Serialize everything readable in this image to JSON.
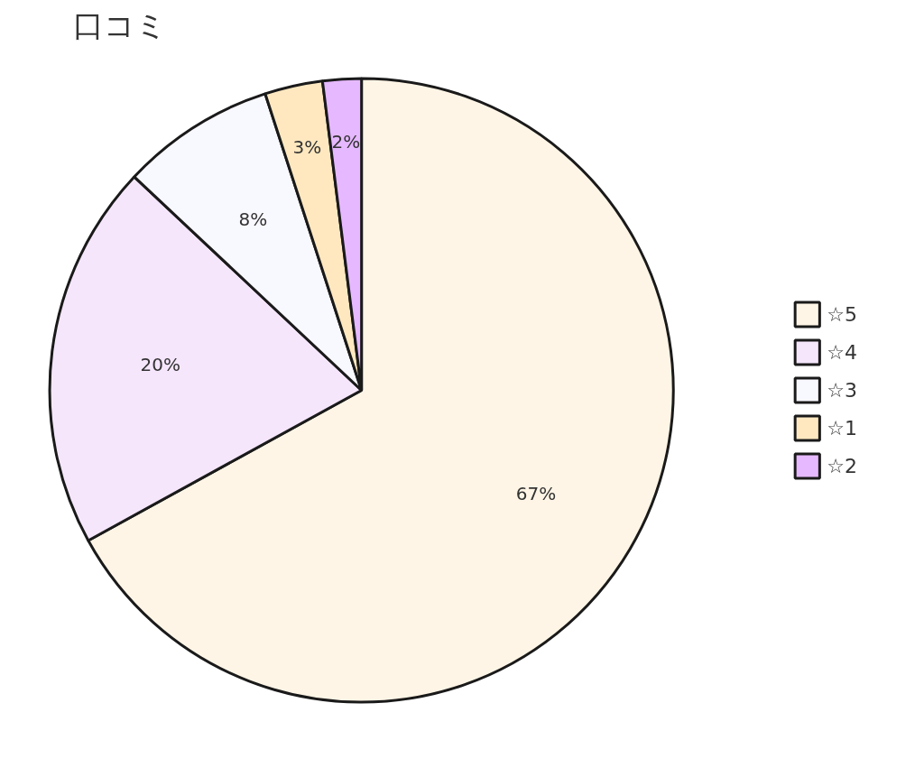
{
  "chart_data": {
    "type": "pie",
    "title": "口コミ",
    "categories": [
      "☆5",
      "☆4",
      "☆3",
      "☆1",
      "☆2"
    ],
    "values": [
      67,
      20,
      8,
      3,
      2
    ],
    "colors": [
      "#fff5e6",
      "#f5e6fc",
      "#f8f8ff",
      "#ffe8c0",
      "#e6b8ff"
    ],
    "value_labels": [
      "67%",
      "20%",
      "8%",
      "3%",
      "2%"
    ],
    "legend": "right"
  }
}
